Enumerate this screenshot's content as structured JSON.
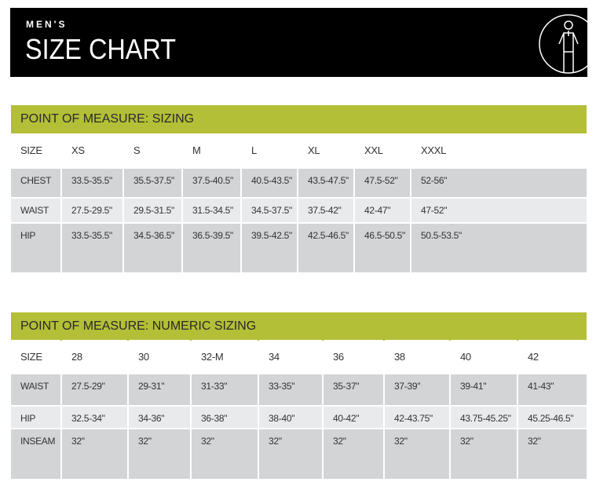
{
  "header": {
    "subtitle": "MEN'S",
    "title": "SIZE CHART",
    "icon": "person-measure-icon"
  },
  "colors": {
    "accent": "#b3bf36",
    "row_dark": "#d3d4d6",
    "row_light": "#e9eaeb"
  },
  "sizing": {
    "title": "POINT OF MEASURE: SIZING",
    "columns": [
      "SIZE",
      "XS",
      "S",
      "M",
      "L",
      "XL",
      "XXL",
      "XXXL"
    ],
    "rows": [
      [
        "CHEST",
        "33.5-35.5\"",
        "35.5-37.5\"",
        "37.5-40.5\"",
        "40.5-43.5\"",
        "43.5-47.5\"",
        "47.5-52\"",
        "52-56\""
      ],
      [
        "WAIST",
        "27.5-29.5\"",
        "29.5-31.5\"",
        "31.5-34.5\"",
        "34.5-37.5\"",
        "37.5-42\"",
        "42-47\"",
        "47-52\""
      ],
      [
        "HIP",
        "33.5-35.5\"",
        "34.5-36.5\"",
        "36.5-39.5\"",
        "39.5-42.5\"",
        "42.5-46.5\"",
        "46.5-50.5\"",
        "50.5-53.5\""
      ]
    ]
  },
  "numeric": {
    "title": "POINT OF MEASURE: NUMERIC SIZING",
    "columns": [
      "SIZE",
      "28",
      "30",
      "32-M",
      "34",
      "36",
      "38",
      "40",
      "42"
    ],
    "rows": [
      [
        "WAIST",
        "27.5-29\"",
        "29-31\"",
        "31-33\"",
        "33-35\"",
        "35-37\"",
        "37-39\"",
        "39-41\"",
        "41-43\""
      ],
      [
        "HIP",
        "32.5-34\"",
        "34-36\"",
        "36-38\"",
        "38-40\"",
        "40-42\"",
        "42-43.75\"",
        "43.75-45.25\"",
        "45.25-46.5\""
      ],
      [
        "INSEAM",
        "32\"",
        "32\"",
        "32\"",
        "32\"",
        "32\"",
        "32\"",
        "32\"",
        "32\""
      ]
    ]
  }
}
